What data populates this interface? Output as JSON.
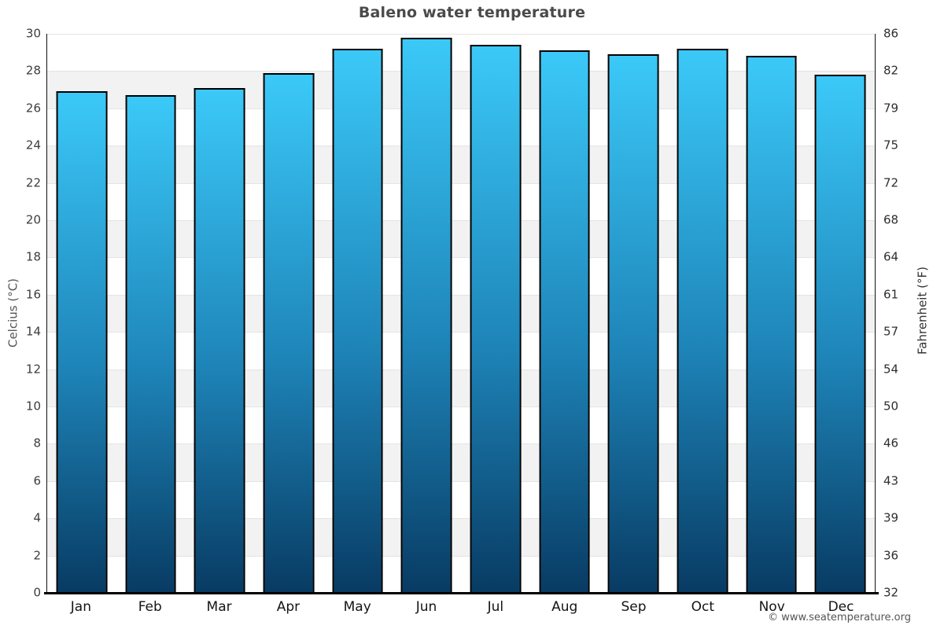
{
  "title": "Baleno water temperature",
  "footer": "© www.seatemperature.org",
  "chart_data": {
    "type": "bar",
    "title": "Baleno water temperature",
    "categories": [
      "Jan",
      "Feb",
      "Mar",
      "Apr",
      "May",
      "Jun",
      "Jul",
      "Aug",
      "Sep",
      "Oct",
      "Nov",
      "Dec"
    ],
    "values": [
      26.9,
      26.7,
      27.1,
      27.9,
      29.2,
      29.8,
      29.4,
      29.1,
      28.9,
      29.2,
      28.8,
      27.8
    ],
    "unit": "°C",
    "ylabel_left": "Celcius (°C)",
    "ylabel_right": "Fahrenheit (°F)",
    "ylim": [
      0,
      30
    ],
    "yticks_celsius": [
      30,
      28,
      26,
      24,
      22,
      20,
      18,
      16,
      14,
      12,
      10,
      8,
      6,
      4,
      2,
      0
    ],
    "yticks_fahrenheit": [
      86,
      82,
      79,
      75,
      72,
      68,
      64,
      61,
      57,
      54,
      50,
      46,
      43,
      39,
      36,
      32
    ],
    "legend": "none",
    "grid": "alternating horizontal shaded bands every 2°C",
    "colors": {
      "bar_gradient_top": "#3bc9f8",
      "bar_gradient_mid": "#1e84b8",
      "bar_gradient_bottom": "#083b63",
      "bar_border": "#000000",
      "band_shade": "#f2f2f2",
      "grid_line": "#e4e4e4",
      "axis_line": "#000000",
      "title_color": "#4a4a4a"
    }
  }
}
